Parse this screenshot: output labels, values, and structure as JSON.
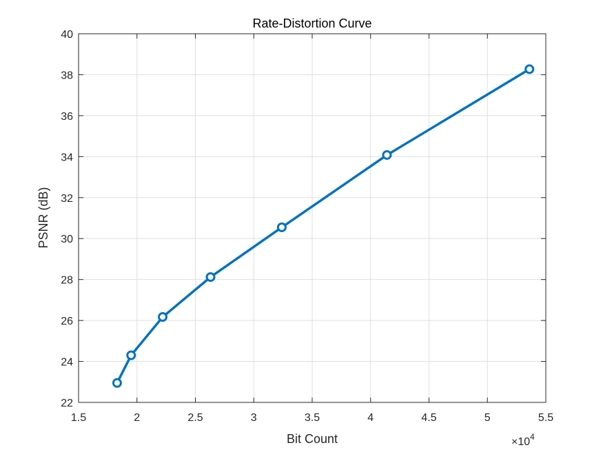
{
  "chart_data": {
    "type": "line",
    "title": "Rate-Distortion Curve",
    "xlabel": "Bit Count",
    "ylabel": "PSNR (dB)",
    "x_exponent_prefix": "×10",
    "x_exponent_power": "4",
    "xlim": [
      1.5,
      5.5
    ],
    "ylim": [
      22,
      40
    ],
    "x_ticks": [
      1.5,
      2,
      2.5,
      3,
      3.5,
      4,
      4.5,
      5,
      5.5
    ],
    "x_tick_labels": [
      "1.5",
      "2",
      "2.5",
      "3",
      "3.5",
      "4",
      "4.5",
      "5",
      "5.5"
    ],
    "y_ticks": [
      22,
      24,
      26,
      28,
      30,
      32,
      34,
      36,
      38,
      40
    ],
    "y_tick_labels": [
      "22",
      "24",
      "26",
      "28",
      "30",
      "32",
      "34",
      "36",
      "38",
      "40"
    ],
    "grid": true,
    "series": [
      {
        "x": [
          1.83,
          1.95,
          2.22,
          2.63,
          3.24,
          4.14,
          5.36
        ],
        "y": [
          22.95,
          24.3,
          26.17,
          28.12,
          30.55,
          34.08,
          38.27
        ],
        "color": "#0072BD",
        "marker": "circle"
      }
    ]
  }
}
